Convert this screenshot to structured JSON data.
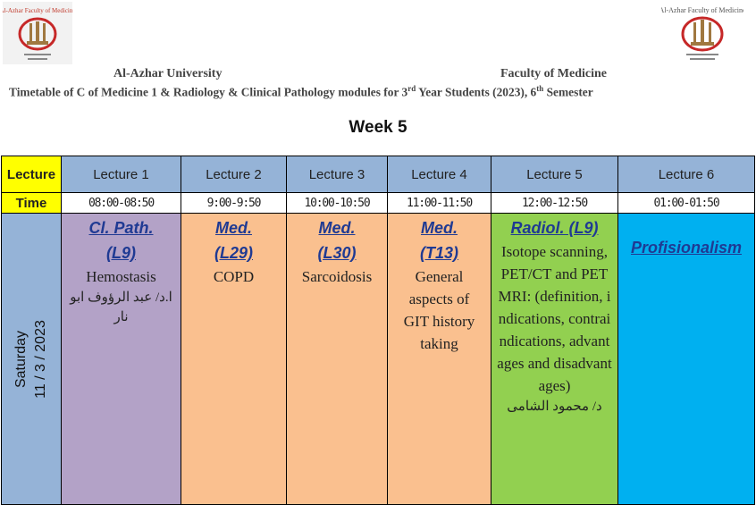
{
  "header": {
    "university": "Al-Azhar University",
    "faculty": "Faculty of Medicine",
    "subtitle_pre": "Timetable of C of Medicine 1 & Radiology  & Clinical Pathology modules for 3",
    "subtitle_sup1": "rd",
    "subtitle_mid": " Year Students (2023), 6",
    "subtitle_sup2": "th",
    "subtitle_post": " Semester",
    "logo_left_text": "Al-Azhar Faculty of Medicine",
    "logo_right_text": "Al-Azhar Faculty of Medicine"
  },
  "week": "Week 5",
  "table": {
    "row_header_lecture": "Lecture",
    "row_header_time": "Time",
    "lectures": [
      "Lecture 1",
      "Lecture 2",
      "Lecture 3",
      "Lecture 4",
      "Lecture 5",
      "Lecture 6"
    ],
    "times": [
      "08:00-08:50",
      "9:00-9:50",
      "10:00-10:50",
      "11:00-11:50",
      "12:00-12:50",
      "01:00-01:50"
    ],
    "day": {
      "name": "Saturday",
      "date": "11 / 3 / 2023"
    },
    "sessions": [
      {
        "module": "Cl. Path.",
        "code": "(L9)",
        "topic": "Hemostasis",
        "lecturer": "ا.د/ عبد الرؤوف ابو نار",
        "color": "#b3a2c7"
      },
      {
        "module": "Med.",
        "code": "(L29)",
        "topic": "COPD",
        "lecturer": "",
        "color": "#fac08f"
      },
      {
        "module": "Med.",
        "code": "(L30)",
        "topic": "Sarcoidosis",
        "lecturer": "",
        "color": "#fac08f"
      },
      {
        "module": "Med.",
        "code": "(T13)",
        "topic": "General aspects of GIT history taking",
        "lecturer": "",
        "color": "#fac08f"
      },
      {
        "module": "Radiol. (L9)",
        "code": "",
        "topic": "Isotope scanning, PET/CT and PET MRI: (definition, indications, contraindications, advantages and disadvantages)",
        "lecturer": "د/ محمود الشامى",
        "color": "#92d050"
      },
      {
        "module": "Profisionalism",
        "code": "",
        "topic": "",
        "lecturer": "",
        "color": "#00b0f0"
      }
    ]
  }
}
